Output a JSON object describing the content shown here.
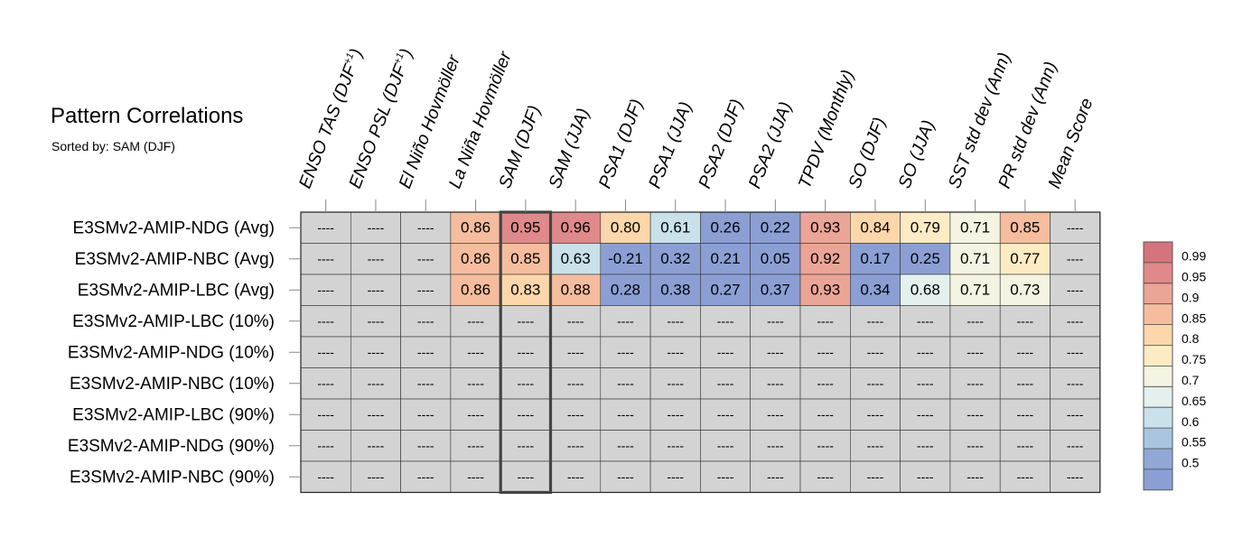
{
  "chart_data": {
    "type": "heatmap",
    "title": "Pattern Correlations",
    "subtitle": "Sorted by: SAM (DJF)",
    "sorted_by_column": "SAM (DJF)",
    "columns": [
      {
        "pre": "ENSO TAS (DJF",
        "sup": "+1",
        "post": ")"
      },
      {
        "pre": "ENSO PSL (DJF",
        "sup": "+1",
        "post": ")"
      },
      {
        "pre": "El Niño Hovmöller"
      },
      {
        "pre": "La Niña Hovmöller"
      },
      {
        "pre": "SAM (DJF)"
      },
      {
        "pre": "SAM (JJA)"
      },
      {
        "pre": "PSA1 (DJF)"
      },
      {
        "pre": "PSA1 (JJA)"
      },
      {
        "pre": "PSA2 (DJF)"
      },
      {
        "pre": "PSA2 (JJA)"
      },
      {
        "pre": "TPDV (Monthly)"
      },
      {
        "pre": "SO (DJF)"
      },
      {
        "pre": "SO (JJA)"
      },
      {
        "pre": "SST std dev (Ann)"
      },
      {
        "pre": "PR std dev (Ann)"
      },
      {
        "pre": "Mean Score"
      }
    ],
    "rows": [
      "E3SMv2-AMIP-NDG (Avg)",
      "E3SMv2-AMIP-NBC (Avg)",
      "E3SMv2-AMIP-LBC (Avg)",
      "E3SMv2-AMIP-LBC (10%)",
      "E3SMv2-AMIP-NDG (10%)",
      "E3SMv2-AMIP-NBC (10%)",
      "E3SMv2-AMIP-LBC (90%)",
      "E3SMv2-AMIP-NDG (90%)",
      "E3SMv2-AMIP-NBC (90%)"
    ],
    "values": [
      [
        null,
        null,
        null,
        "0.86",
        "0.95",
        "0.96",
        "0.80",
        "0.61",
        "0.26",
        "0.22",
        "0.93",
        "0.84",
        "0.79",
        "0.71",
        "0.85",
        null
      ],
      [
        null,
        null,
        null,
        "0.86",
        "0.85",
        "0.63",
        "-0.21",
        "0.32",
        "0.21",
        "0.05",
        "0.92",
        "0.17",
        "0.25",
        "0.71",
        "0.77",
        null
      ],
      [
        null,
        null,
        null,
        "0.86",
        "0.83",
        "0.88",
        "0.28",
        "0.38",
        "0.27",
        "0.37",
        "0.93",
        "0.34",
        "0.68",
        "0.71",
        "0.73",
        null
      ],
      [
        null,
        null,
        null,
        null,
        null,
        null,
        null,
        null,
        null,
        null,
        null,
        null,
        null,
        null,
        null,
        null
      ],
      [
        null,
        null,
        null,
        null,
        null,
        null,
        null,
        null,
        null,
        null,
        null,
        null,
        null,
        null,
        null,
        null
      ],
      [
        null,
        null,
        null,
        null,
        null,
        null,
        null,
        null,
        null,
        null,
        null,
        null,
        null,
        null,
        null,
        null
      ],
      [
        null,
        null,
        null,
        null,
        null,
        null,
        null,
        null,
        null,
        null,
        null,
        null,
        null,
        null,
        null,
        null
      ],
      [
        null,
        null,
        null,
        null,
        null,
        null,
        null,
        null,
        null,
        null,
        null,
        null,
        null,
        null,
        null,
        null
      ],
      [
        null,
        null,
        null,
        null,
        null,
        null,
        null,
        null,
        null,
        null,
        null,
        null,
        null,
        null,
        null,
        null
      ]
    ],
    "missing_label": "----",
    "missing_color": "#d3d3d3",
    "colorbar": {
      "levels": [
        "0.99",
        "0.95",
        "0.9",
        "0.85",
        "0.8",
        "0.75",
        "0.7",
        "0.65",
        "0.6",
        "0.55",
        "0.5"
      ],
      "colors": [
        "#d5737d",
        "#e0898a",
        "#eba597",
        "#f5bd9d",
        "#fbd7aa",
        "#fdebc3",
        "#f5f3e1",
        "#e3f0ee",
        "#c8e1eb",
        "#a9c6e0",
        "#8fa8d6",
        "#8b9fd4"
      ]
    }
  }
}
